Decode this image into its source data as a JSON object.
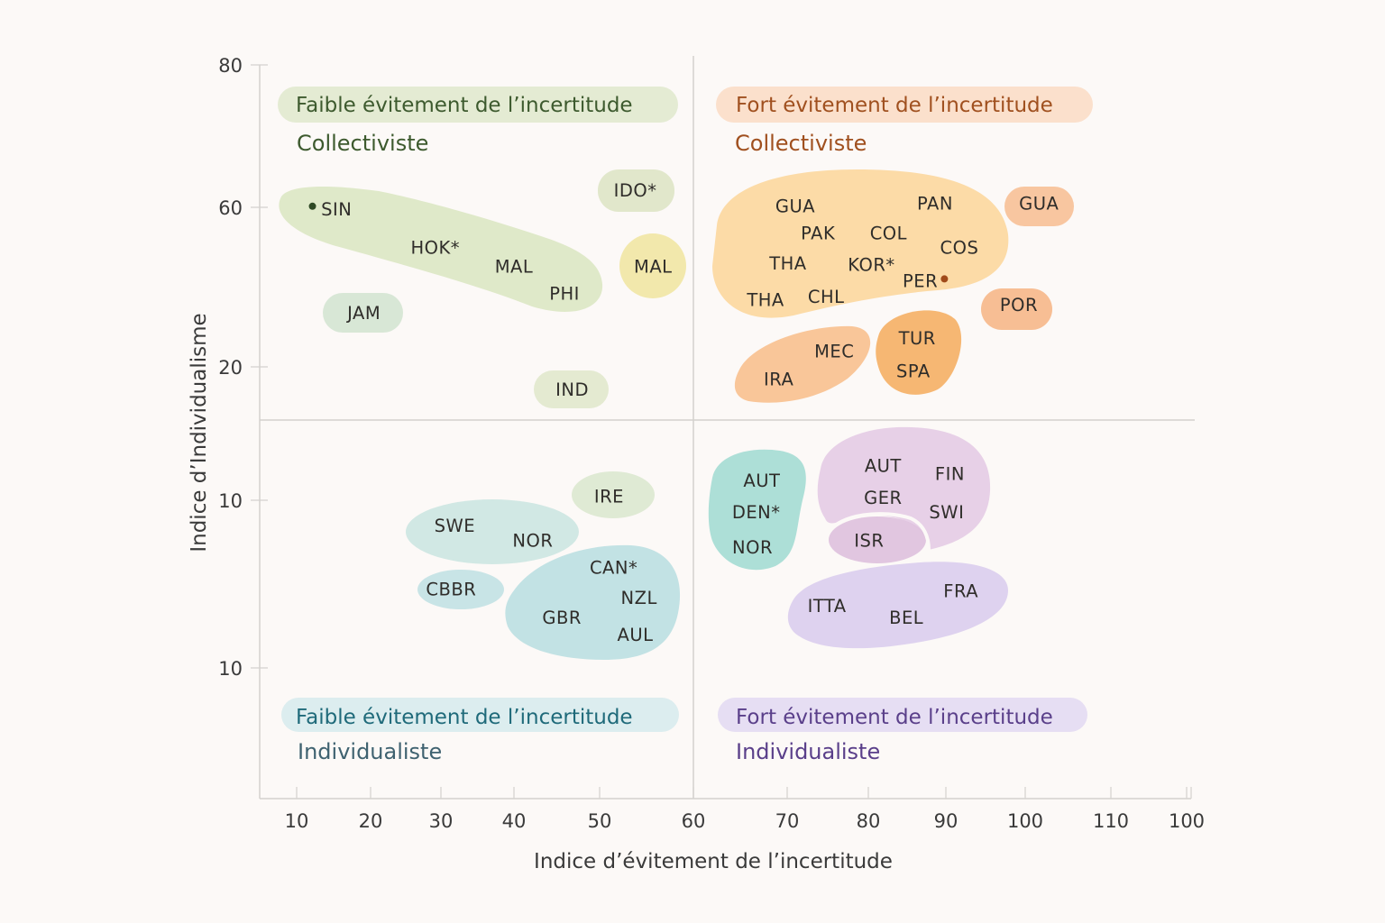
{
  "chart_data": {
    "type": "scatter",
    "title": "",
    "xlabel": "Indice d’évitement de l’incertitude",
    "ylabel": "Indice d’Individualisme",
    "x_ticks": [
      "10",
      "20",
      "30",
      "40",
      "50",
      "60",
      "70",
      "80",
      "90",
      "100",
      "110",
      "100"
    ],
    "y_ticks": [
      "80",
      "60",
      "20",
      "10",
      "10"
    ],
    "grid": false,
    "quadrant_divider": {
      "x": 60,
      "y_between_ticks": [
        "20",
        "10"
      ]
    },
    "quadrants": [
      {
        "id": "top-left",
        "line1": "Faible évitement de l’incertitude",
        "line2": "Collectiviste",
        "text_color": "#3d5a2e",
        "pill_color": "#e4ebd3"
      },
      {
        "id": "top-right",
        "line1": "Fort évitement de l’incertitude",
        "line2": "Collectiviste",
        "text_color": "#a0501f",
        "pill_color": "#fbe0cc"
      },
      {
        "id": "bottom-left",
        "line1": "Faible évitement de l’incertitude",
        "line2": "Individualiste",
        "text_color": "#1f6a7a",
        "line2_color": "#3f6270",
        "pill_color": "#dcedef"
      },
      {
        "id": "bottom-right",
        "line1": "Fort évitement de l’incertitude",
        "line2": "Individualiste",
        "text_color": "#5a3f8a",
        "pill_color": "#e6def3"
      }
    ],
    "clusters": [
      {
        "name": "cluster-sin-phi",
        "color": "#dde8c6",
        "members": [
          "SIN",
          "HOK*",
          "MAL",
          "PHI"
        ]
      },
      {
        "name": "cluster-jam",
        "color": "#d6e6d4",
        "members": [
          "JAM"
        ]
      },
      {
        "name": "cluster-ido",
        "color": "#dfe6c8",
        "members": [
          "IDO*"
        ]
      },
      {
        "name": "cluster-mal",
        "color": "#f1e7a8",
        "members": [
          "MAL"
        ]
      },
      {
        "name": "cluster-ind",
        "color": "#e3e9cf",
        "members": [
          "IND"
        ]
      },
      {
        "name": "cluster-latin-asia",
        "color": "#fcd9a2",
        "members": [
          "GUA",
          "PAN",
          "PAK",
          "COL",
          "COS",
          "THA",
          "KOR*",
          "PER",
          "THA",
          "CHL"
        ]
      },
      {
        "name": "cluster-gua",
        "color": "#f8c39b",
        "members": [
          "GUA"
        ]
      },
      {
        "name": "cluster-por",
        "color": "#f7bb8e",
        "members": [
          "POR"
        ]
      },
      {
        "name": "cluster-mec-ira",
        "color": "#f9c393",
        "members": [
          "MEC",
          "IRA"
        ]
      },
      {
        "name": "cluster-tur-spa",
        "color": "#f6b36b",
        "members": [
          "TUR",
          "SPA"
        ]
      },
      {
        "name": "cluster-ire",
        "color": "#dde9d2",
        "members": [
          "IRE"
        ]
      },
      {
        "name": "cluster-swe-nor",
        "color": "#cfe7e3",
        "members": [
          "SWE",
          "NOR"
        ]
      },
      {
        "name": "cluster-cbbr",
        "color": "#c5e3e5",
        "members": [
          "CBBR"
        ]
      },
      {
        "name": "cluster-anglo",
        "color": "#bfe0e3",
        "members": [
          "CAN*",
          "NZL",
          "GBR",
          "AUL"
        ]
      },
      {
        "name": "cluster-nordic",
        "color": "#a9ddd5",
        "members": [
          "AUT",
          "DEN*",
          "NOR"
        ]
      },
      {
        "name": "cluster-germanic",
        "color": "#e6cde6",
        "members": [
          "AUT",
          "FIN",
          "GER",
          "SWI"
        ]
      },
      {
        "name": "cluster-isr",
        "color": "#dfc3de",
        "members": [
          "ISR"
        ]
      },
      {
        "name": "cluster-latin-europe",
        "color": "#dcd0ee",
        "members": [
          "ITTA",
          "FRA",
          "BEL"
        ]
      }
    ],
    "points": [
      {
        "label": "SIN",
        "x": 15.4,
        "y_tick_pos": 1.01,
        "marker": true,
        "marker_color": "#2f4a25"
      },
      {
        "label": "HOK*",
        "x": 29.2,
        "y_tick_pos": 1.25
      },
      {
        "label": "MAL",
        "x": 40.0,
        "y_tick_pos": 1.37
      },
      {
        "label": "PHI",
        "x": 45.9,
        "y_tick_pos": 1.54
      },
      {
        "label": "JAM",
        "x": 19.1,
        "y_tick_pos": 1.66
      },
      {
        "label": "IDO*",
        "x": 53.8,
        "y_tick_pos": 0.88
      },
      {
        "label": "MAL",
        "x": 55.7,
        "y_tick_pos": 1.37
      },
      {
        "label": "IND",
        "x": 46.8,
        "y_tick_pos": 2.17
      },
      {
        "label": "GUA",
        "x": 71.0,
        "y_tick_pos": 0.99
      },
      {
        "label": "PAN",
        "x": 88.6,
        "y_tick_pos": 0.97
      },
      {
        "label": "GUA",
        "x": 101.6,
        "y_tick_pos": 0.97
      },
      {
        "label": "PAK",
        "x": 73.8,
        "y_tick_pos": 1.16
      },
      {
        "label": "COL",
        "x": 82.6,
        "y_tick_pos": 1.16
      },
      {
        "label": "COS",
        "x": 91.7,
        "y_tick_pos": 1.25
      },
      {
        "label": "THA",
        "x": 70.1,
        "y_tick_pos": 1.35
      },
      {
        "label": "KOR*",
        "x": 80.4,
        "y_tick_pos": 1.36
      },
      {
        "label": "PER",
        "x": 86.7,
        "y_tick_pos": 1.46,
        "marker": true,
        "marker_color": "#a04a1a"
      },
      {
        "label": "THA",
        "x": 67.7,
        "y_tick_pos": 1.58
      },
      {
        "label": "CHL",
        "x": 74.8,
        "y_tick_pos": 1.56
      },
      {
        "label": "POR",
        "x": 99.2,
        "y_tick_pos": 1.61
      },
      {
        "label": "MEC",
        "x": 75.8,
        "y_tick_pos": 1.9
      },
      {
        "label": "IRA",
        "x": 69.1,
        "y_tick_pos": 2.09
      },
      {
        "label": "TUR",
        "x": 86.3,
        "y_tick_pos": 1.82
      },
      {
        "label": "SPA",
        "x": 85.8,
        "y_tick_pos": 2.03
      },
      {
        "label": "IRE",
        "x": 51.0,
        "y_tick_pos": 2.97
      },
      {
        "label": "SWE",
        "x": 31.9,
        "y_tick_pos": 3.15
      },
      {
        "label": "NOR",
        "x": 42.2,
        "y_tick_pos": 3.24
      },
      {
        "label": "CAN*",
        "x": 51.5,
        "y_tick_pos": 3.4
      },
      {
        "label": "CBBR",
        "x": 31.4,
        "y_tick_pos": 3.53
      },
      {
        "label": "NZL",
        "x": 54.2,
        "y_tick_pos": 3.58
      },
      {
        "label": "GBR",
        "x": 45.6,
        "y_tick_pos": 3.7
      },
      {
        "label": "AUL",
        "x": 53.8,
        "y_tick_pos": 3.8
      },
      {
        "label": "AUT",
        "x": 67.3,
        "y_tick_pos": 2.85
      },
      {
        "label": "DEN*",
        "x": 66.7,
        "y_tick_pos": 3.07
      },
      {
        "label": "NOR",
        "x": 66.3,
        "y_tick_pos": 3.28
      },
      {
        "label": "AUT",
        "x": 81.9,
        "y_tick_pos": 2.74
      },
      {
        "label": "FIN",
        "x": 90.5,
        "y_tick_pos": 2.8
      },
      {
        "label": "GER",
        "x": 81.9,
        "y_tick_pos": 2.98
      },
      {
        "label": "SWI",
        "x": 90.1,
        "y_tick_pos": 3.07
      },
      {
        "label": "ISR",
        "x": 80.1,
        "y_tick_pos": 3.24
      },
      {
        "label": "FRA",
        "x": 91.9,
        "y_tick_pos": 3.54
      },
      {
        "label": "ITTA",
        "x": 74.9,
        "y_tick_pos": 3.63
      },
      {
        "label": "BEL",
        "x": 84.9,
        "y_tick_pos": 3.7
      }
    ]
  }
}
